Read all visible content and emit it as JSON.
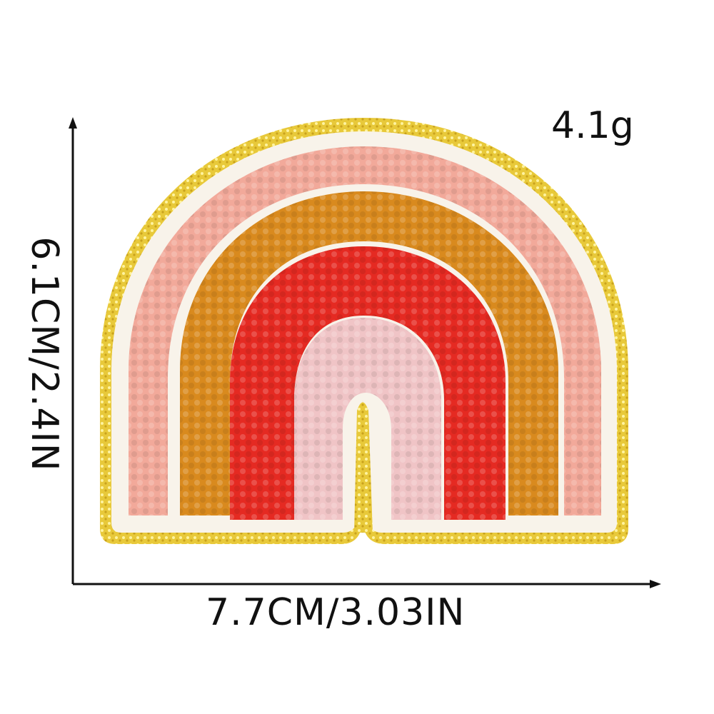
{
  "product": {
    "name_icon": "rainbow-chenille-patch",
    "colors": {
      "glitter_border": "#e8c93a",
      "felt_base": "#f8f3ea",
      "outer_arc": "#f2a99a",
      "middle_arc": "#d98a1e",
      "inner_arc": "#e52a22",
      "center_arc": "#f0c4c6"
    }
  },
  "dimensions": {
    "weight_label": "4.1g",
    "width_label": "7.7CM/3.03IN",
    "height_label": "6.1CM/2.4IN"
  }
}
